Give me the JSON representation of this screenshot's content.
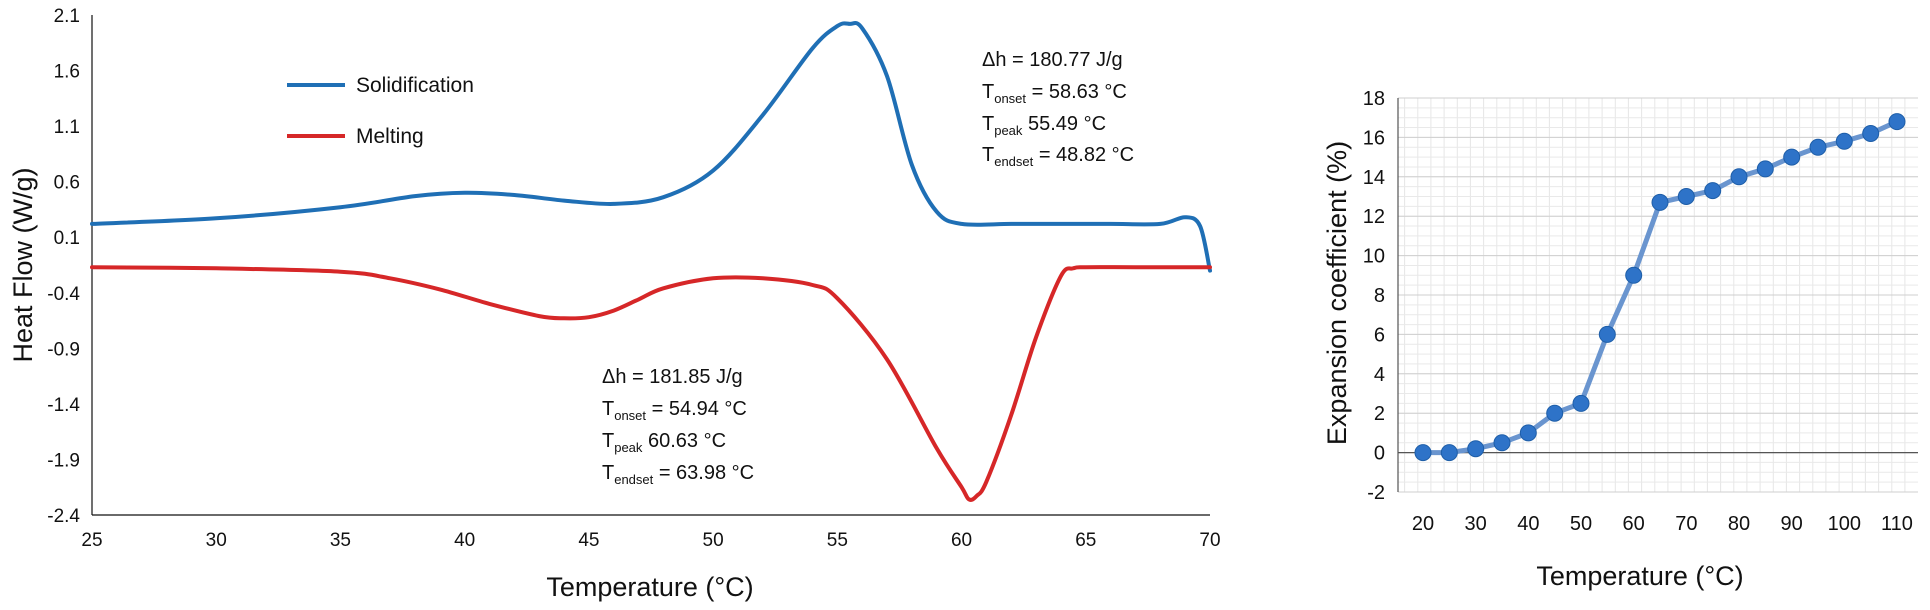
{
  "chart_data": [
    {
      "type": "line",
      "title": "",
      "xlabel": "Temperature (°C)",
      "ylabel": "Heat Flow (W/g)",
      "xlim": [
        25,
        70
      ],
      "ylim": [
        -2.4,
        2.1
      ],
      "xticks": [
        "25",
        "30",
        "35",
        "40",
        "45",
        "50",
        "55",
        "60",
        "65",
        "70"
      ],
      "yticks": [
        "2.1",
        "1.6",
        "1.1",
        "0.6",
        "0.1",
        "-0.4",
        "-0.9",
        "-1.4",
        "-1.9",
        "-2.4"
      ],
      "legend_position": "top-left",
      "series": [
        {
          "name": "Solidification",
          "color": "#1f6fb5",
          "x": [
            25,
            30,
            35,
            38,
            40,
            42,
            44,
            46,
            48,
            50,
            52,
            54,
            55,
            55.5,
            56,
            57,
            58,
            59,
            60,
            62,
            64,
            66,
            68,
            69,
            69.6,
            70
          ],
          "y": [
            0.22,
            0.27,
            0.37,
            0.47,
            0.5,
            0.48,
            0.43,
            0.4,
            0.46,
            0.7,
            1.2,
            1.8,
            2.0,
            2.02,
            1.98,
            1.55,
            0.75,
            0.33,
            0.22,
            0.22,
            0.22,
            0.22,
            0.22,
            0.28,
            0.2,
            -0.2
          ]
        },
        {
          "name": "Melting",
          "color": "#d62728",
          "x": [
            25,
            30,
            35,
            37,
            39,
            41,
            43,
            44,
            45,
            46,
            47,
            48,
            50,
            52,
            54,
            55,
            57,
            59,
            60,
            60.3,
            60.6,
            61,
            62,
            63,
            64,
            64.5,
            65,
            67,
            70
          ],
          "y": [
            -0.17,
            -0.18,
            -0.21,
            -0.27,
            -0.37,
            -0.5,
            -0.61,
            -0.63,
            -0.62,
            -0.56,
            -0.46,
            -0.36,
            -0.27,
            -0.27,
            -0.33,
            -0.45,
            -1.0,
            -1.8,
            -2.15,
            -2.26,
            -2.23,
            -2.1,
            -1.5,
            -0.8,
            -0.25,
            -0.18,
            -0.17,
            -0.17,
            -0.17
          ]
        }
      ],
      "annotations": {
        "solidification": {
          "dh": "Δh     = 180.77 J/g",
          "onset_main": "T",
          "onset_sub": "onset",
          "onset_val": " = 58.63 °C",
          "peak_main": "T",
          "peak_sub": "peak",
          "peak_val": "   55.49 °C",
          "endset_main": "T",
          "endset_sub": "endset",
          "endset_val": " = 48.82 °C"
        },
        "melting": {
          "dh": "Δh     = 181.85 J/g",
          "onset_main": "T",
          "onset_sub": "onset",
          "onset_val": " = 54.94 °C",
          "peak_main": "T",
          "peak_sub": "peak",
          "peak_val": "   60.63 °C",
          "endset_main": "T",
          "endset_sub": "endset",
          "endset_val": " = 63.98 °C"
        }
      }
    },
    {
      "type": "line",
      "title": "",
      "xlabel": "Temperature (°C)",
      "ylabel": "Expansion coefficient (%)",
      "xlim": [
        20,
        110
      ],
      "ylim": [
        -2,
        18
      ],
      "grid": true,
      "xticks": [
        "20",
        "30",
        "40",
        "50",
        "60",
        "70",
        "80",
        "90",
        "100",
        "110"
      ],
      "yticks": [
        "18",
        "16",
        "14",
        "12",
        "10",
        "8",
        "6",
        "4",
        "2",
        "0",
        "-2"
      ],
      "series": [
        {
          "name": "Expansion coefficient",
          "color": "#2e73c8",
          "x": [
            20,
            25,
            30,
            35,
            40,
            45,
            50,
            55,
            60,
            65,
            70,
            75,
            80,
            85,
            90,
            95,
            100,
            105,
            110
          ],
          "y": [
            0,
            0,
            0.2,
            0.5,
            1.0,
            2.0,
            2.5,
            6.0,
            9.0,
            12.7,
            13.0,
            13.3,
            14.0,
            14.4,
            15.0,
            15.5,
            15.8,
            16.2,
            16.8
          ]
        }
      ]
    }
  ]
}
